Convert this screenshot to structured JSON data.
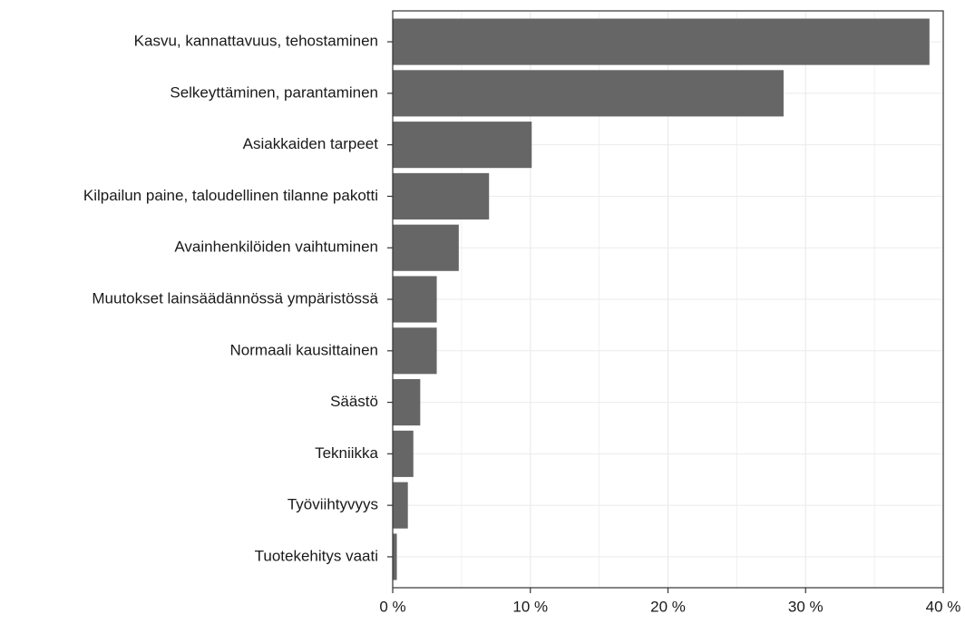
{
  "chart_data": {
    "type": "barh",
    "categories": [
      "Kasvu, kannattavuus, tehostaminen",
      "Selkeyttäminen, parantaminen",
      "Asiakkaiden tarpeet",
      "Kilpailun paine, taloudellinen tilanne pakotti",
      "Avainhenkilöiden vaihtuminen",
      "Muutokset lainsäädännössä ympäristössä",
      "Normaali kausittainen",
      "Säästö",
      "Tekniikka",
      "Työviihtyvyys",
      "Tuotekehitys vaati"
    ],
    "values": [
      39.0,
      28.4,
      10.1,
      7.0,
      4.8,
      3.2,
      3.2,
      2.0,
      1.5,
      1.1,
      0.3
    ],
    "color": "#666666",
    "xlim": [
      0,
      40
    ],
    "xticks": [
      {
        "value": 0,
        "label": "0 %"
      },
      {
        "value": 10,
        "label": "10 %"
      },
      {
        "value": 20,
        "label": "20 %"
      },
      {
        "value": 30,
        "label": "30 %"
      },
      {
        "value": 40,
        "label": "40 %"
      }
    ],
    "xminorticks": [
      5,
      15,
      25,
      35
    ],
    "grid": true
  }
}
